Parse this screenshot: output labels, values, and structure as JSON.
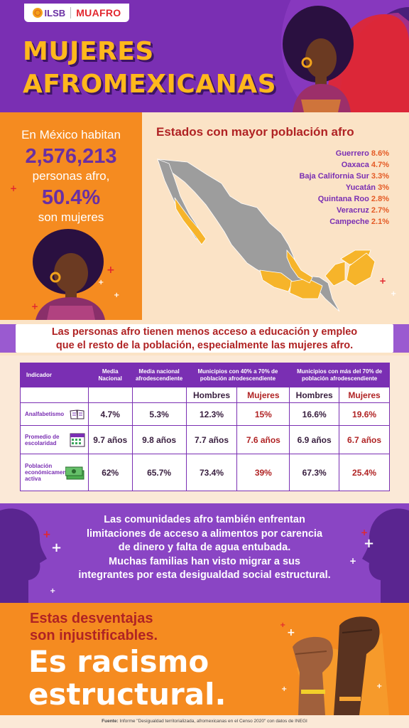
{
  "header": {
    "logo_left": "ILSB",
    "logo_right": "MUAFRO",
    "title_line1": "MUJERES",
    "title_line2": "AFROMEXICANAS"
  },
  "stats": {
    "line1": "En México habitan",
    "population": "2,576,213",
    "line2": "personas afro,",
    "percent": "50.4%",
    "line3": "son mujeres"
  },
  "map": {
    "title": "Estados con mayor población afro",
    "states": [
      {
        "name": "Guerrero",
        "pct": "8.6%"
      },
      {
        "name": "Oaxaca",
        "pct": "4.7%"
      },
      {
        "name": "Baja California Sur",
        "pct": "3.3%"
      },
      {
        "name": "Yucatán",
        "pct": "3%"
      },
      {
        "name": "Quintana Roo",
        "pct": "2.8%"
      },
      {
        "name": "Veracruz",
        "pct": "2.7%"
      },
      {
        "name": "Campeche",
        "pct": "2.1%"
      }
    ],
    "highlight_color": "#f6b42a",
    "base_color": "#9d9d9d"
  },
  "banner": {
    "line1": "Las personas afro tienen menos acceso a educación y empleo",
    "line2": "que el resto de la población, especialmente las mujeres afro."
  },
  "table": {
    "headers": {
      "indicator": "Indicador",
      "national": "Media Nacional",
      "national_afro": "Media nacional afrodescendiente",
      "mun_40_70": "Municipios con 40% a 70% de población afrodescendiente",
      "mun_70": "Municipios con más del 70% de población afrodescendiente"
    },
    "sub": {
      "men": "Hombres",
      "women": "Mujeres"
    },
    "rows": [
      {
        "indicator": "Analfabetismo",
        "icon": "book-icon",
        "national": "4.7%",
        "afro": "5.3%",
        "m1": "12.3%",
        "w1": "15%",
        "m2": "16.6%",
        "w2": "19.6%"
      },
      {
        "indicator": "Promedio de escolaridad",
        "icon": "calendar-icon",
        "national": "9.7 años",
        "afro": "9.8 años",
        "m1": "7.7 años",
        "w1": "7.6 años",
        "m2": "6.9 años",
        "w2": "6.7 años"
      },
      {
        "indicator": "Población económicamente activa",
        "icon": "money-icon",
        "national": "62%",
        "afro": "65.7%",
        "m1": "73.4%",
        "w1": "39%",
        "m2": "67.3%",
        "w2": "25.4%"
      }
    ]
  },
  "message": {
    "line1": "Las comunidades afro también enfrentan",
    "line2": "limitaciones de acceso a alimentos por carencia",
    "line3": "de dinero y falta de agua entubada.",
    "line4": "Muchas familias han visto migrar a sus",
    "line5": "integrantes por esta desigualdad social estructural."
  },
  "closing": {
    "line1": "Estas desventajas",
    "line2": "son injustificables.",
    "big1": "Es racismo",
    "big2": "estructural."
  },
  "footer": {
    "label": "Fuente:",
    "text": "Informe \"Desigualdad territorializada, afromexicanas en el Censo 2020\" con datos de INEGI"
  },
  "colors": {
    "purple": "#7a2fb3",
    "orange": "#f58b20",
    "yellow": "#ffb81c",
    "red": "#b02324"
  }
}
